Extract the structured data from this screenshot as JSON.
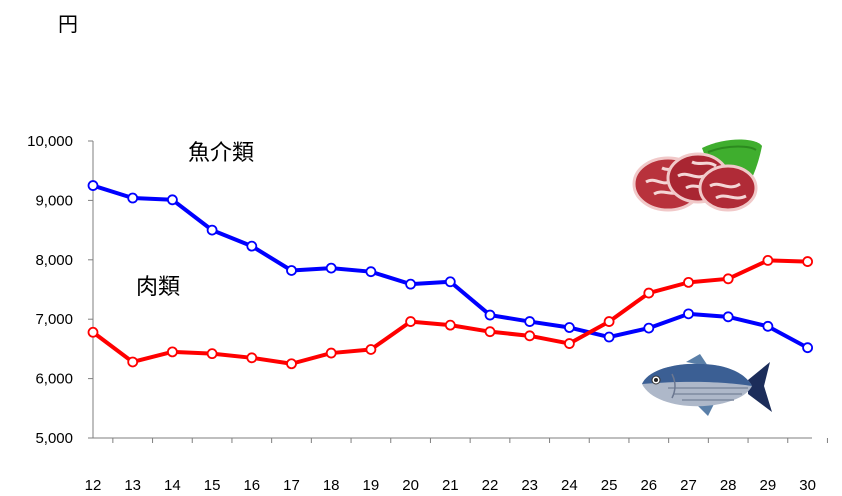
{
  "chart_data": {
    "type": "line",
    "unit": "円",
    "categories": [
      "12",
      "13",
      "14",
      "15",
      "16",
      "17",
      "18",
      "19",
      "20",
      "21",
      "22",
      "23",
      "24",
      "25",
      "26",
      "27",
      "28",
      "29",
      "30"
    ],
    "ylim": [
      5000,
      10000
    ],
    "yticks": [
      5000,
      6000,
      7000,
      8000,
      9000,
      10000
    ],
    "ytick_labels": [
      "5,000",
      "6,000",
      "7,000",
      "8,000",
      "9,000",
      "10,000"
    ],
    "grid": false,
    "series": [
      {
        "name": "魚介類",
        "color": "#0000ff",
        "values": [
          9250,
          9040,
          9010,
          8500,
          8230,
          7820,
          7860,
          7800,
          7590,
          7630,
          7070,
          6960,
          6860,
          6700,
          6850,
          7090,
          7040,
          6880,
          6520
        ]
      },
      {
        "name": "肉類",
        "color": "#ff0000",
        "values": [
          6780,
          6280,
          6450,
          6420,
          6350,
          6250,
          6430,
          6490,
          6960,
          6900,
          6790,
          6720,
          6590,
          6960,
          7440,
          7620,
          7680,
          7990,
          7970
        ]
      }
    ],
    "images": [
      "meat-icon",
      "fish-icon"
    ]
  }
}
